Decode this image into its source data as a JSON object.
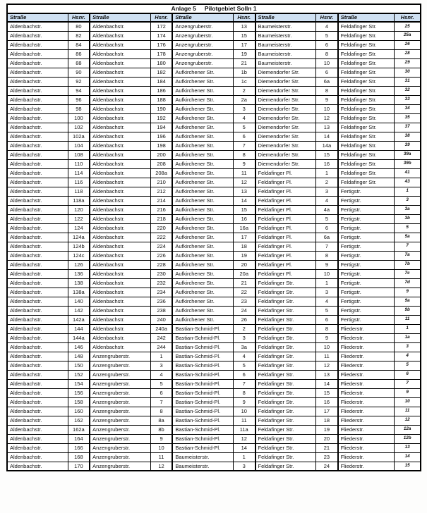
{
  "colors": {
    "header_bg": "#cfe0f2",
    "border": "#000000"
  },
  "table": {
    "title_part1": "Anlage 5",
    "title_part2": "Pilotgebiet Solln 1",
    "column_headers": [
      "Straße",
      "Hsnr.",
      "Straße",
      "Hsnr.",
      "Straße",
      "Hsnr.",
      "Straße",
      "Hsnr.",
      "Straße",
      "Hsnr."
    ],
    "rows": [
      [
        "Aldenbachstr.",
        "80",
        "Aldenbachstr.",
        "172",
        "Anzengruberstr.",
        "13",
        "Baumeisterstr.",
        "4",
        "Feldafinger Str.",
        "25"
      ],
      [
        "Aldenbachstr.",
        "82",
        "Aldenbachstr.",
        "174",
        "Anzengruberstr.",
        "15",
        "Baumeisterstr.",
        "5",
        "Feldafinger Str.",
        "25a"
      ],
      [
        "Aldenbachstr.",
        "84",
        "Aldenbachstr.",
        "176",
        "Anzengruberstr.",
        "17",
        "Baumeisterstr.",
        "6",
        "Feldafinger Str.",
        "26"
      ],
      [
        "Aldenbachstr.",
        "86",
        "Aldenbachstr.",
        "178",
        "Anzengruberstr.",
        "19",
        "Baumeisterstr.",
        "8",
        "Feldafinger Str.",
        "28"
      ],
      [
        "Aldenbachstr.",
        "88",
        "Aldenbachstr.",
        "180",
        "Anzengruberstr.",
        "21",
        "Baumeisterstr.",
        "10",
        "Feldafinger Str.",
        "29"
      ],
      [
        "Aldenbachstr.",
        "90",
        "Aldenbachstr.",
        "182",
        "Aufkirchener Str.",
        "1b",
        "Diemendorfer Str.",
        "6",
        "Feldafinger Str.",
        "30"
      ],
      [
        "Aldenbachstr.",
        "92",
        "Aldenbachstr.",
        "184",
        "Aufkirchener Str.",
        "1c",
        "Diemendorfer Str.",
        "6a",
        "Feldafinger Str.",
        "31"
      ],
      [
        "Aldenbachstr.",
        "94",
        "Aldenbachstr.",
        "186",
        "Aufkirchener Str.",
        "2",
        "Diemendorfer Str.",
        "8",
        "Feldafinger Str.",
        "32"
      ],
      [
        "Aldenbachstr.",
        "96",
        "Aldenbachstr.",
        "188",
        "Aufkirchener Str.",
        "2a",
        "Diemendorfer Str.",
        "9",
        "Feldafinger Str.",
        "33"
      ],
      [
        "Aldenbachstr.",
        "98",
        "Aldenbachstr.",
        "190",
        "Aufkirchener Str.",
        "3",
        "Diemendorfer Str.",
        "10",
        "Feldafinger Str.",
        "34"
      ],
      [
        "Aldenbachstr.",
        "100",
        "Aldenbachstr.",
        "192",
        "Aufkirchener Str.",
        "4",
        "Diemendorfer Str.",
        "12",
        "Feldafinger Str.",
        "35"
      ],
      [
        "Aldenbachstr.",
        "102",
        "Aldenbachstr.",
        "194",
        "Aufkirchener Str.",
        "5",
        "Diemendorfer Str.",
        "13",
        "Feldafinger Str.",
        "37"
      ],
      [
        "Aldenbachstr.",
        "102a",
        "Aldenbachstr.",
        "196",
        "Aufkirchener Str.",
        "6",
        "Diemendorfer Str.",
        "14",
        "Feldafinger Str.",
        "38"
      ],
      [
        "Aldenbachstr.",
        "104",
        "Aldenbachstr.",
        "198",
        "Aufkirchener Str.",
        "7",
        "Diemendorfer Str.",
        "14a",
        "Feldafinger Str.",
        "39"
      ],
      [
        "Aldenbachstr.",
        "108",
        "Aldenbachstr.",
        "200",
        "Aufkirchener Str.",
        "8",
        "Diemendorfer Str.",
        "15",
        "Feldafinger Str.",
        "39a"
      ],
      [
        "Aldenbachstr.",
        "110",
        "Aldenbachstr.",
        "208",
        "Aufkirchener Str.",
        "9",
        "Diemendorfer Str.",
        "16",
        "Feldafinger Str.",
        "39b"
      ],
      [
        "Aldenbachstr.",
        "114",
        "Aldenbachstr.",
        "208a",
        "Aufkirchener Str.",
        "11",
        "Feldafinger Pl.",
        "1",
        "Feldafinger Str.",
        "41"
      ],
      [
        "Aldenbachstr.",
        "116",
        "Aldenbachstr.",
        "210",
        "Aufkirchener Str.",
        "12",
        "Feldafinger Pl.",
        "2",
        "Feldafinger Str.",
        "43"
      ],
      [
        "Aldenbachstr.",
        "118",
        "Aldenbachstr.",
        "212",
        "Aufkirchener Str.",
        "13",
        "Feldafinger Pl.",
        "3",
        "Fertigstr.",
        "1"
      ],
      [
        "Aldenbachstr.",
        "118a",
        "Aldenbachstr.",
        "214",
        "Aufkirchener Str.",
        "14",
        "Feldafinger Pl.",
        "4",
        "Fertigstr.",
        "3"
      ],
      [
        "Aldenbachstr.",
        "120",
        "Aldenbachstr.",
        "216",
        "Aufkirchener Str.",
        "15",
        "Feldafinger Pl.",
        "4a",
        "Fertigstr.",
        "3a"
      ],
      [
        "Aldenbachstr.",
        "122",
        "Aldenbachstr.",
        "218",
        "Aufkirchener Str.",
        "16",
        "Feldafinger Pl.",
        "5",
        "Fertigstr.",
        "3b"
      ],
      [
        "Aldenbachstr.",
        "124",
        "Aldenbachstr.",
        "220",
        "Aufkirchener Str.",
        "16a",
        "Feldafinger Pl.",
        "6",
        "Fertigstr.",
        "5"
      ],
      [
        "Aldenbachstr.",
        "124a",
        "Aldenbachstr.",
        "222",
        "Aufkirchener Str.",
        "17",
        "Feldafinger Pl.",
        "6a",
        "Fertigstr.",
        "5a"
      ],
      [
        "Aldenbachstr.",
        "124b",
        "Aldenbachstr.",
        "224",
        "Aufkirchener Str.",
        "18",
        "Feldafinger Pl.",
        "7",
        "Fertigstr.",
        "7"
      ],
      [
        "Aldenbachstr.",
        "124c",
        "Aldenbachstr.",
        "226",
        "Aufkirchener Str.",
        "19",
        "Feldafinger Pl.",
        "8",
        "Fertigstr.",
        "7a"
      ],
      [
        "Aldenbachstr.",
        "126",
        "Aldenbachstr.",
        "228",
        "Aufkirchener Str.",
        "20",
        "Feldafinger Pl.",
        "9",
        "Fertigstr.",
        "7b"
      ],
      [
        "Aldenbachstr.",
        "136",
        "Aldenbachstr.",
        "230",
        "Aufkirchener Str.",
        "20a",
        "Feldafinger Pl.",
        "10",
        "Fertigstr.",
        "7c"
      ],
      [
        "Aldenbachstr.",
        "138",
        "Aldenbachstr.",
        "232",
        "Aufkirchener Str.",
        "21",
        "Feldafinger Str.",
        "1",
        "Fertigstr.",
        "7d"
      ],
      [
        "Aldenbachstr.",
        "138a",
        "Aldenbachstr.",
        "234",
        "Aufkirchener Str.",
        "22",
        "Feldafinger Str.",
        "3",
        "Fertigstr.",
        "9"
      ],
      [
        "Aldenbachstr.",
        "140",
        "Aldenbachstr.",
        "236",
        "Aufkirchener Str.",
        "23",
        "Feldafinger Str.",
        "4",
        "Fertigstr.",
        "9a"
      ],
      [
        "Aldenbachstr.",
        "142",
        "Aldenbachstr.",
        "238",
        "Aufkirchener Str.",
        "24",
        "Feldafinger Str.",
        "5",
        "Fertigstr.",
        "9b"
      ],
      [
        "Aldenbachstr.",
        "142a",
        "Aldenbachstr.",
        "240",
        "Aufkirchener Str.",
        "26",
        "Feldafinger Str.",
        "6",
        "Fertigstr.",
        "11"
      ],
      [
        "Aldenbachstr.",
        "144",
        "Aldenbachstr.",
        "240a",
        "Bastian-Schmid-Pl.",
        "2",
        "Feldafinger Str.",
        "8",
        "Fliederstr.",
        "1"
      ],
      [
        "Aldenbachstr.",
        "144a",
        "Aldenbachstr.",
        "242",
        "Bastian-Schmid-Pl.",
        "3",
        "Feldafinger Str.",
        "9",
        "Fliederstr.",
        "1a"
      ],
      [
        "Aldenbachstr.",
        "146",
        "Aldenbachstr.",
        "244",
        "Bastian-Schmid-Pl.",
        "3a",
        "Feldafinger Str.",
        "10",
        "Fliederstr.",
        "3"
      ],
      [
        "Aldenbachstr.",
        "148",
        "Anzengruberstr.",
        "1",
        "Bastian-Schmid-Pl.",
        "4",
        "Feldafinger Str.",
        "11",
        "Fliederstr.",
        "4"
      ],
      [
        "Aldenbachstr.",
        "150",
        "Anzengruberstr.",
        "3",
        "Bastian-Schmid-Pl.",
        "5",
        "Feldafinger Str.",
        "12",
        "Fliederstr.",
        "5"
      ],
      [
        "Aldenbachstr.",
        "152",
        "Anzengruberstr.",
        "4",
        "Bastian-Schmid-Pl.",
        "6",
        "Feldafinger Str.",
        "13",
        "Fliederstr.",
        "6"
      ],
      [
        "Aldenbachstr.",
        "154",
        "Anzengruberstr.",
        "5",
        "Bastian-Schmid-Pl.",
        "7",
        "Feldafinger Str.",
        "14",
        "Fliederstr.",
        "7"
      ],
      [
        "Aldenbachstr.",
        "156",
        "Anzengruberstr.",
        "6",
        "Bastian-Schmid-Pl.",
        "8",
        "Feldafinger Str.",
        "15",
        "Fliederstr.",
        "9"
      ],
      [
        "Aldenbachstr.",
        "158",
        "Anzengruberstr.",
        "7",
        "Bastian-Schmid-Pl.",
        "9",
        "Feldafinger Str.",
        "16",
        "Fliederstr.",
        "10"
      ],
      [
        "Aldenbachstr.",
        "160",
        "Anzengruberstr.",
        "8",
        "Bastian-Schmid-Pl.",
        "10",
        "Feldafinger Str.",
        "17",
        "Fliederstr.",
        "11"
      ],
      [
        "Aldenbachstr.",
        "162",
        "Anzengruberstr.",
        "8a",
        "Bastian-Schmid-Pl.",
        "11",
        "Feldafinger Str.",
        "18",
        "Fliederstr.",
        "12"
      ],
      [
        "Aldenbachstr.",
        "162a",
        "Anzengruberstr.",
        "8b",
        "Bastian-Schmid-Pl.",
        "11a",
        "Feldafinger Str.",
        "19",
        "Fliederstr.",
        "12a"
      ],
      [
        "Aldenbachstr.",
        "164",
        "Anzengruberstr.",
        "9",
        "Bastian-Schmid-Pl.",
        "12",
        "Feldafinger Str.",
        "20",
        "Fliederstr.",
        "12b"
      ],
      [
        "Aldenbachstr.",
        "166",
        "Anzengruberstr.",
        "10",
        "Bastian-Schmid-Pl.",
        "14",
        "Feldafinger Str.",
        "21",
        "Fliederstr.",
        "13"
      ],
      [
        "Aldenbachstr.",
        "168",
        "Anzengruberstr.",
        "11",
        "Baumeisterstr.",
        "1",
        "Feldafinger Str.",
        "23",
        "Fliederstr.",
        "14"
      ],
      [
        "Aldenbachstr.",
        "170",
        "Anzengruberstr.",
        "12",
        "Baumeisterstr.",
        "3",
        "Feldafinger Str.",
        "24",
        "Fliederstr.",
        "15"
      ]
    ]
  }
}
